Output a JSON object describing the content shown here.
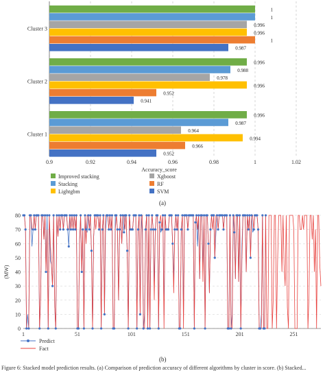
{
  "page": {
    "panel_a_label": "(a)",
    "panel_b_label": "(b)",
    "caption": "Figure 6: Stacked model prediction results. (a) Comparison of prediction accuracy of different algorithms by cluster in score. (b) Stacked..."
  },
  "chart_data": [
    {
      "type": "bar",
      "orientation": "horizontal",
      "xlabel": "Accuracy_score",
      "xlim": [
        0.9,
        1.02
      ],
      "xticks": [
        "0.9",
        "0.92",
        "0.94",
        "0.96",
        "0.98",
        "1",
        "1.02"
      ],
      "grid": "vertical dashed",
      "legend_position": "bottom-left, two columns",
      "categories": [
        "Cluster 3",
        "Cluster 2",
        "Cluster 1"
      ],
      "series": [
        {
          "name": "Improved stacking",
          "color": "#70ad47",
          "values": [
            1,
            0.996,
            0.996
          ],
          "labels": [
            "1",
            "0.996",
            "0.996"
          ]
        },
        {
          "name": "Stacking",
          "color": "#5b9bd5",
          "values": [
            1,
            0.988,
            0.987
          ],
          "labels": [
            "1",
            "0.988",
            "0.987"
          ]
        },
        {
          "name": "Xgboost",
          "color": "#a5a5a5",
          "values": [
            0.996,
            0.978,
            0.964
          ],
          "labels": [
            "0.996",
            "0.978",
            "0.964"
          ]
        },
        {
          "name": "Lightgbm",
          "color": "#ffc000",
          "values": [
            0.996,
            0.996,
            0.994
          ],
          "labels": [
            "0.996",
            "0.996",
            "0.994"
          ]
        },
        {
          "name": "RF",
          "color": "#ed7d31",
          "values": [
            1,
            0.952,
            0.966
          ],
          "labels": [
            "1",
            "0.952",
            "0.966"
          ]
        },
        {
          "name": "SVM",
          "color": "#4472c4",
          "values": [
            0.987,
            0.941,
            0.952
          ],
          "labels": [
            "0.987",
            "0.941",
            "0.952"
          ]
        }
      ],
      "legend_order": [
        "Improved stacking",
        "Xgboost",
        "Stacking",
        "RF",
        "Lightgbm",
        "SVM"
      ]
    },
    {
      "type": "line",
      "ylabel": "(MW)",
      "xlabel": "",
      "ylim": [
        0,
        80
      ],
      "yticks": [
        "0",
        "10",
        "20",
        "30",
        "40",
        "50",
        "60",
        "70",
        "80"
      ],
      "xlim": [
        1,
        276
      ],
      "xticks": [
        "1",
        "51",
        "101",
        "151",
        "201",
        "251"
      ],
      "xtick_values": [
        1,
        51,
        101,
        151,
        201,
        251
      ],
      "grid": "horizontal dashed",
      "legend_position": "bottom-left",
      "series": [
        {
          "name": "Predict",
          "color": "#4472c4",
          "marker": "circle"
        },
        {
          "name": "Fact",
          "color": "#e8413e",
          "marker": "none"
        }
      ],
      "pattern": [
        80,
        80,
        0,
        80,
        33,
        70,
        70,
        80,
        80,
        0,
        80,
        80,
        70,
        80,
        70,
        80,
        70,
        63,
        0,
        80,
        80,
        0,
        70,
        80,
        80,
        48,
        80,
        70,
        0,
        80,
        70,
        40,
        80,
        80,
        80,
        0,
        80,
        20,
        70,
        80,
        60,
        0,
        80,
        80,
        70,
        0,
        80,
        25,
        70,
        80,
        0,
        80,
        80,
        40,
        70,
        80,
        70,
        0,
        80,
        60,
        80,
        80,
        10,
        70,
        80,
        0,
        80,
        45,
        70,
        80,
        80,
        0,
        75,
        80,
        30,
        80,
        80,
        70,
        0,
        80,
        70,
        80,
        50,
        0,
        80,
        80,
        70,
        80,
        15,
        80,
        0,
        70,
        80,
        80,
        55,
        0,
        80,
        70,
        80,
        80,
        35,
        0,
        80,
        70,
        80,
        70,
        0,
        80,
        80,
        65,
        80,
        0,
        80,
        22,
        80,
        70,
        80
      ],
      "predict_points_limit": 225
    }
  ]
}
